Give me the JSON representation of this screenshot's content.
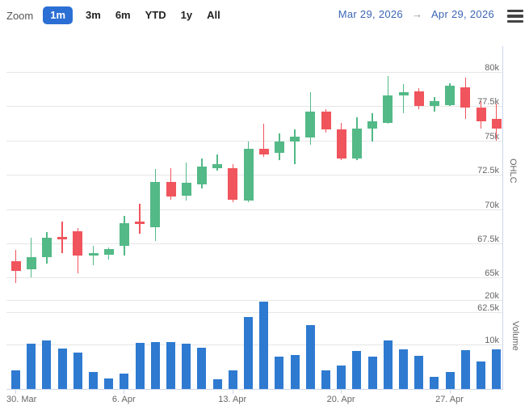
{
  "toolbar": {
    "zoom_label": "Zoom",
    "range_buttons": [
      {
        "label": "1m",
        "selected": true
      },
      {
        "label": "3m",
        "selected": false
      },
      {
        "label": "6m",
        "selected": false
      },
      {
        "label": "YTD",
        "selected": false
      },
      {
        "label": "1y",
        "selected": false
      },
      {
        "label": "All",
        "selected": false
      }
    ],
    "date_from": "Mar 29, 2026",
    "arrow": "→",
    "date_to": "Apr 29, 2026"
  },
  "colors": {
    "up": "#53b987",
    "down": "#f0545c",
    "volume": "#2e7ad1",
    "selected_button_bg": "#2b6fd4",
    "date_text": "#3c66b5",
    "grid": "#e6e6e6",
    "axis_line": "#ccd6eb",
    "label": "#666666"
  },
  "chart_data": {
    "type": "candlestick",
    "subtype": "ohlc-with-volume-pane",
    "units": "thousands (k)",
    "price_axis": {
      "title": "OHLC",
      "side": "right",
      "ticks": [
        {
          "label": "80k",
          "value": 80
        },
        {
          "label": "77.5k",
          "value": 77.5
        },
        {
          "label": "75k",
          "value": 75
        },
        {
          "label": "72.5k",
          "value": 72.5
        },
        {
          "label": "70k",
          "value": 70
        },
        {
          "label": "67.5k",
          "value": 67.5
        },
        {
          "label": "65k",
          "value": 65
        },
        {
          "label": "62.5k",
          "value": 62.5
        }
      ]
    },
    "volume_axis": {
      "title": "Volume",
      "side": "right",
      "ticks": [
        {
          "label": "20k",
          "value": 20
        },
        {
          "label": "10k",
          "value": 10
        }
      ]
    },
    "x_axis": {
      "tick_labels": [
        "30. Mar",
        "6. Apr",
        "13. Apr",
        "20. Apr",
        "27. Apr"
      ]
    },
    "candles": [
      {
        "date": "Mar 29",
        "open": 66.2,
        "high": 67.0,
        "low": 64.6,
        "close": 65.5,
        "volume": 4.2
      },
      {
        "date": "Mar 30",
        "open": 65.6,
        "high": 67.9,
        "low": 65.0,
        "close": 66.5,
        "volume": 10.1
      },
      {
        "date": "Mar 31",
        "open": 66.5,
        "high": 68.3,
        "low": 66.0,
        "close": 67.9,
        "volume": 11.0
      },
      {
        "date": "Apr 1",
        "open": 68.0,
        "high": 69.1,
        "low": 66.8,
        "close": 67.8,
        "volume": 9.1
      },
      {
        "date": "Apr 2",
        "open": 68.4,
        "high": 68.6,
        "low": 65.3,
        "close": 66.6,
        "volume": 8.2
      },
      {
        "date": "Apr 3",
        "open": 66.6,
        "high": 67.3,
        "low": 65.9,
        "close": 66.8,
        "volume": 3.8
      },
      {
        "date": "Apr 4",
        "open": 66.7,
        "high": 67.2,
        "low": 66.3,
        "close": 67.1,
        "volume": 2.3
      },
      {
        "date": "Apr 5",
        "open": 67.3,
        "high": 69.5,
        "low": 66.6,
        "close": 69.0,
        "volume": 3.5
      },
      {
        "date": "Apr 6",
        "open": 69.1,
        "high": 70.4,
        "low": 68.2,
        "close": 68.9,
        "volume": 10.4
      },
      {
        "date": "Apr 7",
        "open": 68.7,
        "high": 72.9,
        "low": 67.7,
        "close": 72.0,
        "volume": 10.5
      },
      {
        "date": "Apr 8",
        "open": 72.0,
        "high": 73.0,
        "low": 70.7,
        "close": 70.9,
        "volume": 10.5
      },
      {
        "date": "Apr 9",
        "open": 71.0,
        "high": 73.4,
        "low": 70.6,
        "close": 71.9,
        "volume": 10.1
      },
      {
        "date": "Apr 10",
        "open": 71.8,
        "high": 73.7,
        "low": 71.5,
        "close": 73.1,
        "volume": 9.3
      },
      {
        "date": "Apr 11",
        "open": 73.0,
        "high": 74.0,
        "low": 72.8,
        "close": 73.3,
        "volume": 2.2
      },
      {
        "date": "Apr 12",
        "open": 73.0,
        "high": 73.3,
        "low": 70.5,
        "close": 70.7,
        "volume": 4.1
      },
      {
        "date": "Apr 13",
        "open": 70.6,
        "high": 74.9,
        "low": 70.5,
        "close": 74.4,
        "volume": 16.2
      },
      {
        "date": "Apr 14",
        "open": 74.4,
        "high": 76.2,
        "low": 73.8,
        "close": 74.0,
        "volume": 19.6
      },
      {
        "date": "Apr 15",
        "open": 74.1,
        "high": 75.5,
        "low": 73.6,
        "close": 74.9,
        "volume": 7.3
      },
      {
        "date": "Apr 16",
        "open": 74.9,
        "high": 75.8,
        "low": 73.3,
        "close": 75.3,
        "volume": 7.6
      },
      {
        "date": "Apr 17",
        "open": 75.2,
        "high": 78.5,
        "low": 74.7,
        "close": 77.1,
        "volume": 14.3
      },
      {
        "date": "Apr 18",
        "open": 77.1,
        "high": 77.3,
        "low": 75.6,
        "close": 75.8,
        "volume": 4.1
      },
      {
        "date": "Apr 19",
        "open": 75.8,
        "high": 76.3,
        "low": 73.6,
        "close": 73.7,
        "volume": 5.2
      },
      {
        "date": "Apr 20",
        "open": 73.7,
        "high": 76.7,
        "low": 73.6,
        "close": 75.9,
        "volume": 8.5
      },
      {
        "date": "Apr 21",
        "open": 75.9,
        "high": 77.0,
        "low": 74.9,
        "close": 76.4,
        "volume": 7.2
      },
      {
        "date": "Apr 22",
        "open": 76.3,
        "high": 79.7,
        "low": 76.2,
        "close": 78.3,
        "volume": 11.0
      },
      {
        "date": "Apr 23",
        "open": 78.3,
        "high": 79.1,
        "low": 77.0,
        "close": 78.5,
        "volume": 8.9
      },
      {
        "date": "Apr 24",
        "open": 78.6,
        "high": 78.8,
        "low": 77.3,
        "close": 77.5,
        "volume": 7.4
      },
      {
        "date": "Apr 25",
        "open": 77.5,
        "high": 78.2,
        "low": 77.1,
        "close": 77.9,
        "volume": 2.8
      },
      {
        "date": "Apr 26",
        "open": 77.6,
        "high": 79.2,
        "low": 77.5,
        "close": 79.0,
        "volume": 3.8
      },
      {
        "date": "Apr 27",
        "open": 78.9,
        "high": 79.6,
        "low": 76.6,
        "close": 77.4,
        "volume": 8.7
      },
      {
        "date": "Apr 28",
        "open": 77.4,
        "high": 77.9,
        "low": 75.9,
        "close": 76.4,
        "volume": 6.1
      },
      {
        "date": "Apr 29",
        "open": 76.6,
        "high": 77.7,
        "low": 75.0,
        "close": 75.9,
        "volume": 9.0
      }
    ]
  }
}
